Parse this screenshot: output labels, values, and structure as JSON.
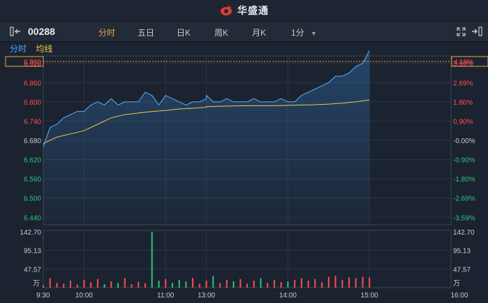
{
  "brand": {
    "name": "华盛通"
  },
  "toolbar": {
    "symbol": "00288",
    "tabs": [
      "分时",
      "五日",
      "日K",
      "周K",
      "月K"
    ],
    "interval": "1分",
    "active_tab": "分时"
  },
  "legend": {
    "price_label": "分时",
    "avg_label": "均线"
  },
  "colors": {
    "up": "#ff4d4d",
    "down": "#2ec27e",
    "price_line": "#5cb0ff",
    "avg_line": "#f3c94a",
    "flat": "#c8ccd2",
    "accent": "#f3a43d"
  },
  "current_price": "6.960",
  "current_pct": "4.19%",
  "chart_data": {
    "type": "line",
    "price_axis": {
      "labels_left": [
        "6.920",
        "6.860",
        "6.800",
        "6.740",
        "6.680",
        "6.620",
        "6.560",
        "6.500",
        "6.440"
      ],
      "labels_right": [
        "3.59%",
        "2.69%",
        "1.80%",
        "0.90%",
        "-0.00%",
        "-0.90%",
        "-1.80%",
        "-2.69%",
        "-3.59%"
      ],
      "ylim": [
        6.4167,
        6.9433
      ]
    },
    "volume_axis": {
      "labels": [
        "142.70",
        "95.13",
        "47.57"
      ],
      "unit": "万",
      "ylim": [
        0,
        142.7
      ]
    },
    "x_tick_labels": [
      "9:30",
      "10:00",
      "11:00",
      "13:00",
      "14:00",
      "15:00",
      "16:00"
    ],
    "series": [
      {
        "name": "分时",
        "x": [
          "9:30",
          "9:35",
          "9:40",
          "9:45",
          "9:50",
          "9:55",
          "10:00",
          "10:05",
          "10:10",
          "10:15",
          "10:20",
          "10:25",
          "10:30",
          "10:35",
          "10:40",
          "10:45",
          "10:50",
          "10:55",
          "11:00",
          "11:05",
          "11:10",
          "11:15",
          "11:20",
          "11:25",
          "11:30",
          "13:00",
          "13:05",
          "13:10",
          "13:15",
          "13:20",
          "13:25",
          "13:30",
          "13:35",
          "13:40",
          "13:45",
          "13:50",
          "13:55",
          "14:00",
          "14:05",
          "14:10",
          "14:15",
          "14:20",
          "14:25",
          "14:30",
          "14:35",
          "14:40",
          "14:45",
          "14:50",
          "14:55",
          "15:00"
        ],
        "values": [
          6.66,
          6.72,
          6.73,
          6.75,
          6.76,
          6.77,
          6.77,
          6.79,
          6.8,
          6.79,
          6.81,
          6.79,
          6.8,
          6.8,
          6.8,
          6.83,
          6.82,
          6.79,
          6.82,
          6.81,
          6.8,
          6.79,
          6.8,
          6.8,
          6.81,
          6.82,
          6.8,
          6.8,
          6.81,
          6.8,
          6.8,
          6.8,
          6.81,
          6.8,
          6.8,
          6.8,
          6.81,
          6.8,
          6.8,
          6.82,
          6.83,
          6.84,
          6.85,
          6.86,
          6.88,
          6.88,
          6.89,
          6.91,
          6.92,
          6.96
        ]
      },
      {
        "name": "均线",
        "x": [
          "9:30",
          "9:40",
          "9:50",
          "10:00",
          "10:10",
          "10:20",
          "10:30",
          "10:40",
          "10:50",
          "11:00",
          "11:10",
          "11:20",
          "11:30",
          "13:00",
          "13:10",
          "13:20",
          "13:30",
          "13:40",
          "13:50",
          "14:00",
          "14:10",
          "14:20",
          "14:30",
          "14:40",
          "14:50",
          "15:00"
        ],
        "values": [
          6.67,
          6.69,
          6.7,
          6.71,
          6.73,
          6.75,
          6.76,
          6.765,
          6.77,
          6.773,
          6.778,
          6.78,
          6.783,
          6.785,
          6.786,
          6.787,
          6.788,
          6.788,
          6.788,
          6.789,
          6.79,
          6.791,
          6.793,
          6.796,
          6.8,
          6.806
        ]
      }
    ],
    "volume": [
      6,
      24,
      12,
      10,
      18,
      8,
      20,
      14,
      22,
      9,
      16,
      12,
      24,
      9,
      15,
      11,
      142.7,
      18,
      22,
      12,
      20,
      16,
      25,
      10,
      18,
      14,
      30,
      12,
      20,
      16,
      22,
      10,
      18,
      24,
      12,
      20,
      14,
      16,
      20,
      24,
      18,
      22,
      14,
      28,
      30,
      20,
      26,
      24,
      28,
      26
    ]
  }
}
